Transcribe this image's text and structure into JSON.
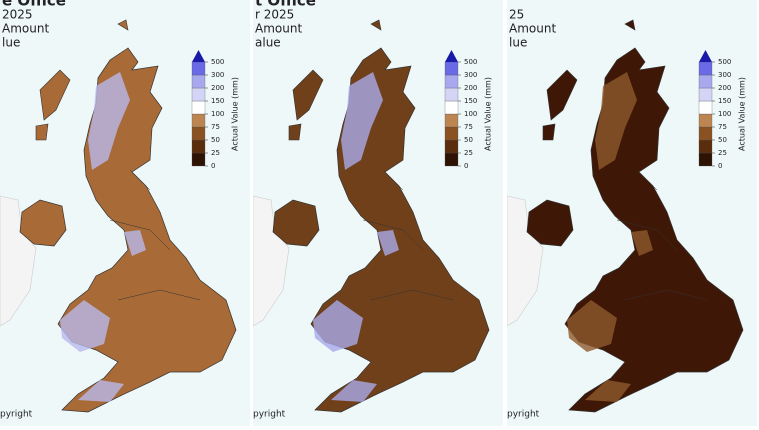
{
  "panels": [
    {
      "header": [
        "e Office",
        "2025",
        "Amount",
        "lue"
      ],
      "footer": "pyright",
      "fill": "#a86a36",
      "highland_fill": "#b9b9ee"
    },
    {
      "header": [
        "t Office",
        "r 2025",
        "Amount",
        "alue"
      ],
      "footer": "pyright",
      "fill": "#70401a",
      "highland_fill": "#a9a9ea"
    },
    {
      "header": [
        "",
        "25",
        "Amount",
        "lue"
      ],
      "footer": "pyright",
      "fill": "#3e1706",
      "highland_fill": "#8f5a2c"
    }
  ],
  "legend": {
    "title": "Actual Value (mm)",
    "ticks": [
      0,
      25,
      50,
      75,
      100,
      150,
      200,
      300,
      500
    ],
    "colors": [
      "#2e1204",
      "#5a2d0c",
      "#8a5222",
      "#bd8552",
      "#ffffff",
      "#d4d4f6",
      "#a8a8ee",
      "#6a6ae6",
      "#1a1aa8"
    ]
  }
}
